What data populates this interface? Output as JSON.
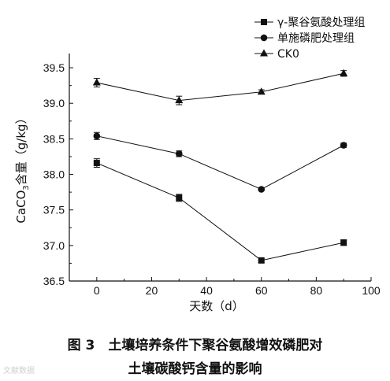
{
  "chart_data": {
    "type": "line",
    "x": [
      0,
      30,
      60,
      90
    ],
    "series": [
      {
        "name": "γ-聚谷氨酸处理组",
        "marker": "square",
        "values": [
          38.16,
          37.67,
          36.79,
          37.04
        ],
        "errors": [
          0.06,
          0.05,
          0.03,
          0.04
        ]
      },
      {
        "name": "单施磷肥处理组",
        "marker": "circle",
        "values": [
          38.54,
          38.29,
          37.79,
          38.41
        ],
        "errors": [
          0.05,
          0.04,
          0.02,
          0.03
        ]
      },
      {
        "name": "CK0",
        "marker": "triangle",
        "values": [
          39.29,
          39.04,
          39.16,
          39.42
        ],
        "errors": [
          0.06,
          0.06,
          0.03,
          0.04
        ]
      }
    ],
    "xlim": [
      -10,
      100
    ],
    "ylim": [
      36.5,
      39.7
    ],
    "xticks": [
      0,
      20,
      40,
      60,
      80,
      100
    ],
    "yticks": [
      36.5,
      37.0,
      37.5,
      38.0,
      38.5,
      39.0,
      39.5
    ],
    "xtick_labels": [
      "0",
      "20",
      "40",
      "60",
      "80",
      "100"
    ],
    "ytick_labels": [
      "36.5",
      "37.0",
      "37.5",
      "38.0",
      "38.5",
      "39.0",
      "39.5"
    ],
    "xlabel": "天数（d）",
    "ylabel_main": "CaCO",
    "ylabel_sub": "3",
    "ylabel_rest": "含量（g/kg）",
    "legend_position": "top-right",
    "grid": false
  },
  "caption": {
    "line1": "图 3　土壤培养条件下聚谷氨酸增效磷肥对",
    "line2": "土壤碳酸钙含量的影响"
  },
  "watermark": "文献数据"
}
